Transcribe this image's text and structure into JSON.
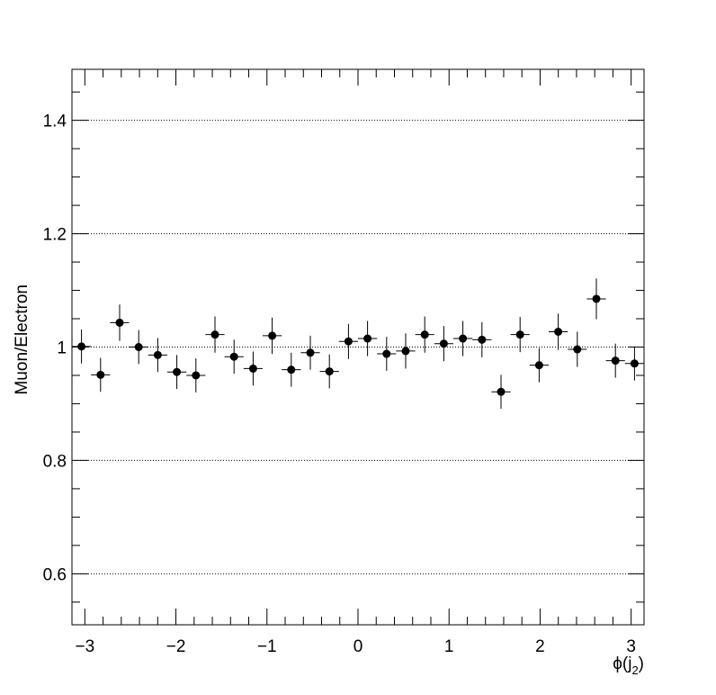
{
  "chart_data": {
    "type": "scatter",
    "title": "",
    "xlabel_base": "ϕ(j",
    "xlabel_sub": "2",
    "xlabel_close": ")",
    "ylabel": "Muon/Electron",
    "xlim": [
      -3.1416,
      3.1416
    ],
    "ylim": [
      0.51,
      1.49
    ],
    "x_ticks": [
      -3,
      -2,
      -1,
      0,
      1,
      2,
      3
    ],
    "x_tick_labels": [
      "−3",
      "−2",
      "−1",
      "0",
      "1",
      "2",
      "3"
    ],
    "y_ticks": [
      0.6,
      0.8,
      1.0,
      1.2,
      1.4
    ],
    "y_tick_labels": [
      "0.6",
      "0.8",
      "1",
      "1.2",
      "1.4"
    ],
    "grid_y": true,
    "grid_x": false,
    "legend": "none",
    "bin_half_width": 0.1047,
    "series": [
      {
        "x": [
          -3.0369,
          -2.8274,
          -2.618,
          -2.4086,
          -2.1991,
          -1.9897,
          -1.7802,
          -1.5708,
          -1.3614,
          -1.1519,
          -0.9425,
          -0.733,
          -0.5236,
          -0.3142,
          -0.1047,
          0.1047,
          0.3142,
          0.5236,
          0.733,
          0.9425,
          1.1519,
          1.3614,
          1.5708,
          1.7802,
          1.9897,
          2.1991,
          2.4086,
          2.618,
          2.8274,
          3.0369
        ],
        "y": [
          1.001,
          0.951,
          1.043,
          1.0,
          0.986,
          0.956,
          0.95,
          1.022,
          0.983,
          0.962,
          1.02,
          0.96,
          0.99,
          0.957,
          1.01,
          1.015,
          0.988,
          0.993,
          1.022,
          1.006,
          1.015,
          1.013,
          0.921,
          1.022,
          0.968,
          1.027,
          0.996,
          1.085,
          0.976,
          0.971
        ],
        "yerr": [
          0.03,
          0.03,
          0.032,
          0.03,
          0.03,
          0.03,
          0.03,
          0.032,
          0.03,
          0.03,
          0.032,
          0.03,
          0.03,
          0.03,
          0.031,
          0.031,
          0.03,
          0.031,
          0.032,
          0.031,
          0.031,
          0.031,
          0.03,
          0.031,
          0.03,
          0.032,
          0.031,
          0.036,
          0.03,
          0.03
        ]
      }
    ],
    "marker_color": "#000000"
  }
}
